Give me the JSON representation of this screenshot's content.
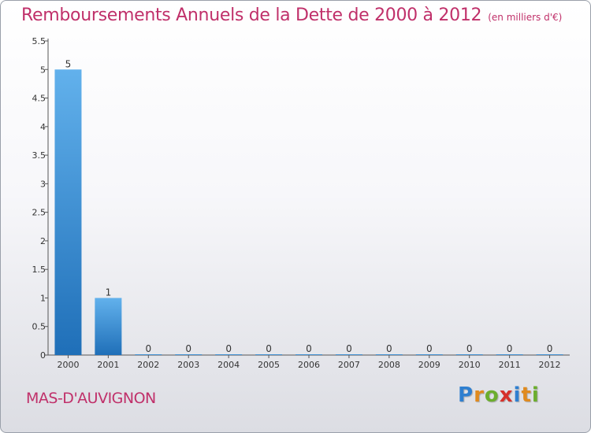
{
  "chart_data": {
    "type": "bar",
    "title": "Remboursements Annuels de la Dette de 2000 à 2012",
    "subtitle": "(en milliers d'€)",
    "categories": [
      "2000",
      "2001",
      "2002",
      "2003",
      "2004",
      "2005",
      "2006",
      "2007",
      "2008",
      "2009",
      "2010",
      "2011",
      "2012"
    ],
    "values": [
      5,
      1,
      0,
      0,
      0,
      0,
      0,
      0,
      0,
      0,
      0,
      0,
      0
    ],
    "value_labels": [
      "5",
      "1",
      "0",
      "0",
      "0",
      "0",
      "0",
      "0",
      "0",
      "0",
      "0",
      "0",
      "0"
    ],
    "yticks": [
      "0",
      "0.5",
      "1",
      "1.5",
      "2",
      "2.5",
      "3",
      "3.5",
      "4",
      "4.5",
      "5",
      "5.5"
    ],
    "ylim": [
      0,
      5.5
    ],
    "xlabel": "",
    "ylabel": "",
    "grid": false,
    "bar_color": "#3a8fd6"
  },
  "footer": {
    "place": "MAS-D'AUVIGNON",
    "brand": "Proxiti",
    "brand_letters": [
      {
        "ch": "P",
        "color": "#2f7fd0"
      },
      {
        "ch": "r",
        "color": "#e08a1e"
      },
      {
        "ch": "o",
        "color": "#6cae2e"
      },
      {
        "ch": "x",
        "color": "#d6302a"
      },
      {
        "ch": "i",
        "color": "#2f7fd0"
      },
      {
        "ch": "t",
        "color": "#e08a1e"
      },
      {
        "ch": "i",
        "color": "#6cae2e"
      }
    ]
  },
  "colors": {
    "title": "#c0306a",
    "axis": "#555555",
    "text": "#333333"
  }
}
